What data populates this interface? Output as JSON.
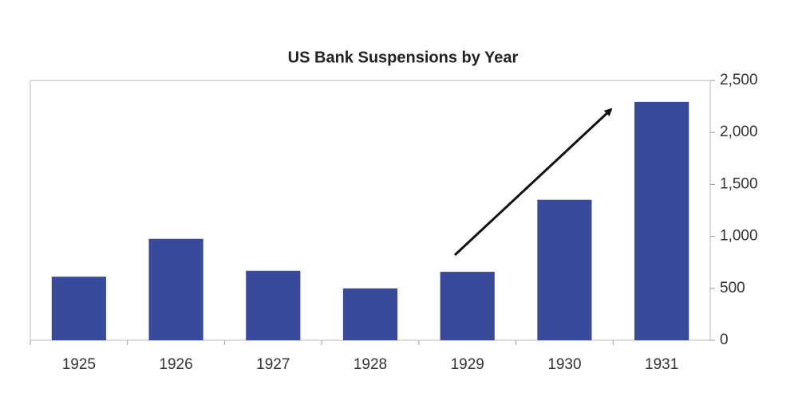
{
  "chart_data": {
    "type": "bar",
    "title": "US Bank Suspensions by Year",
    "categories": [
      "1925",
      "1926",
      "1927",
      "1928",
      "1929",
      "1930",
      "1931"
    ],
    "values": [
      612,
      976,
      669,
      499,
      659,
      1352,
      2294
    ],
    "color": "#3a4a9a",
    "ylim": [
      0,
      2500
    ],
    "yticks": [
      0,
      500,
      {
        "value": 1000,
        "label": "1,000"
      },
      {
        "value": 1500,
        "label": "1,500"
      },
      {
        "value": 2000,
        "label": "2,000"
      },
      {
        "value": 2500,
        "label": "2,500"
      }
    ],
    "y_axis_side": "right",
    "grid": false
  }
}
